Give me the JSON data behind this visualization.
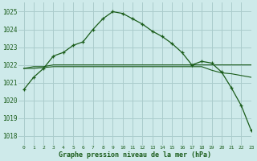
{
  "title": "Graphe pression niveau de la mer (hPa)",
  "background_color": "#ceeaea",
  "grid_color": "#aacccc",
  "line_color": "#1a5c1a",
  "xlim": [
    -0.5,
    23
  ],
  "ylim": [
    1017.5,
    1025.5
  ],
  "yticks": [
    1018,
    1019,
    1020,
    1021,
    1022,
    1023,
    1024,
    1025
  ],
  "xticks": [
    0,
    1,
    2,
    3,
    4,
    5,
    6,
    7,
    8,
    9,
    10,
    11,
    12,
    13,
    14,
    15,
    16,
    17,
    18,
    19,
    20,
    21,
    22,
    23
  ],
  "series1": [
    1020.6,
    1021.3,
    1021.8,
    1022.5,
    1022.7,
    1023.1,
    1023.3,
    1024.0,
    1024.6,
    1025.0,
    1024.9,
    1024.6,
    1024.3,
    1023.9,
    1023.6,
    1023.2,
    1022.7,
    1022.0,
    1022.2,
    1022.1,
    1021.6,
    1020.7,
    1019.7,
    1018.3
  ],
  "series2": [
    1021.8,
    1021.9,
    1021.9,
    1022.0,
    1022.0,
    1022.0,
    1022.0,
    1022.0,
    1022.0,
    1022.0,
    1022.0,
    1022.0,
    1022.0,
    1022.0,
    1022.0,
    1022.0,
    1022.0,
    1022.0,
    1022.0,
    1022.0,
    1022.0,
    1022.0,
    1022.0,
    1022.0
  ],
  "series3": [
    1021.8,
    1021.8,
    1021.85,
    1021.9,
    1021.9,
    1021.9,
    1021.9,
    1021.9,
    1021.9,
    1021.9,
    1021.9,
    1021.9,
    1021.9,
    1021.9,
    1021.9,
    1021.9,
    1021.9,
    1021.9,
    1021.9,
    1021.7,
    1021.55,
    1021.5,
    1021.4,
    1021.3
  ]
}
